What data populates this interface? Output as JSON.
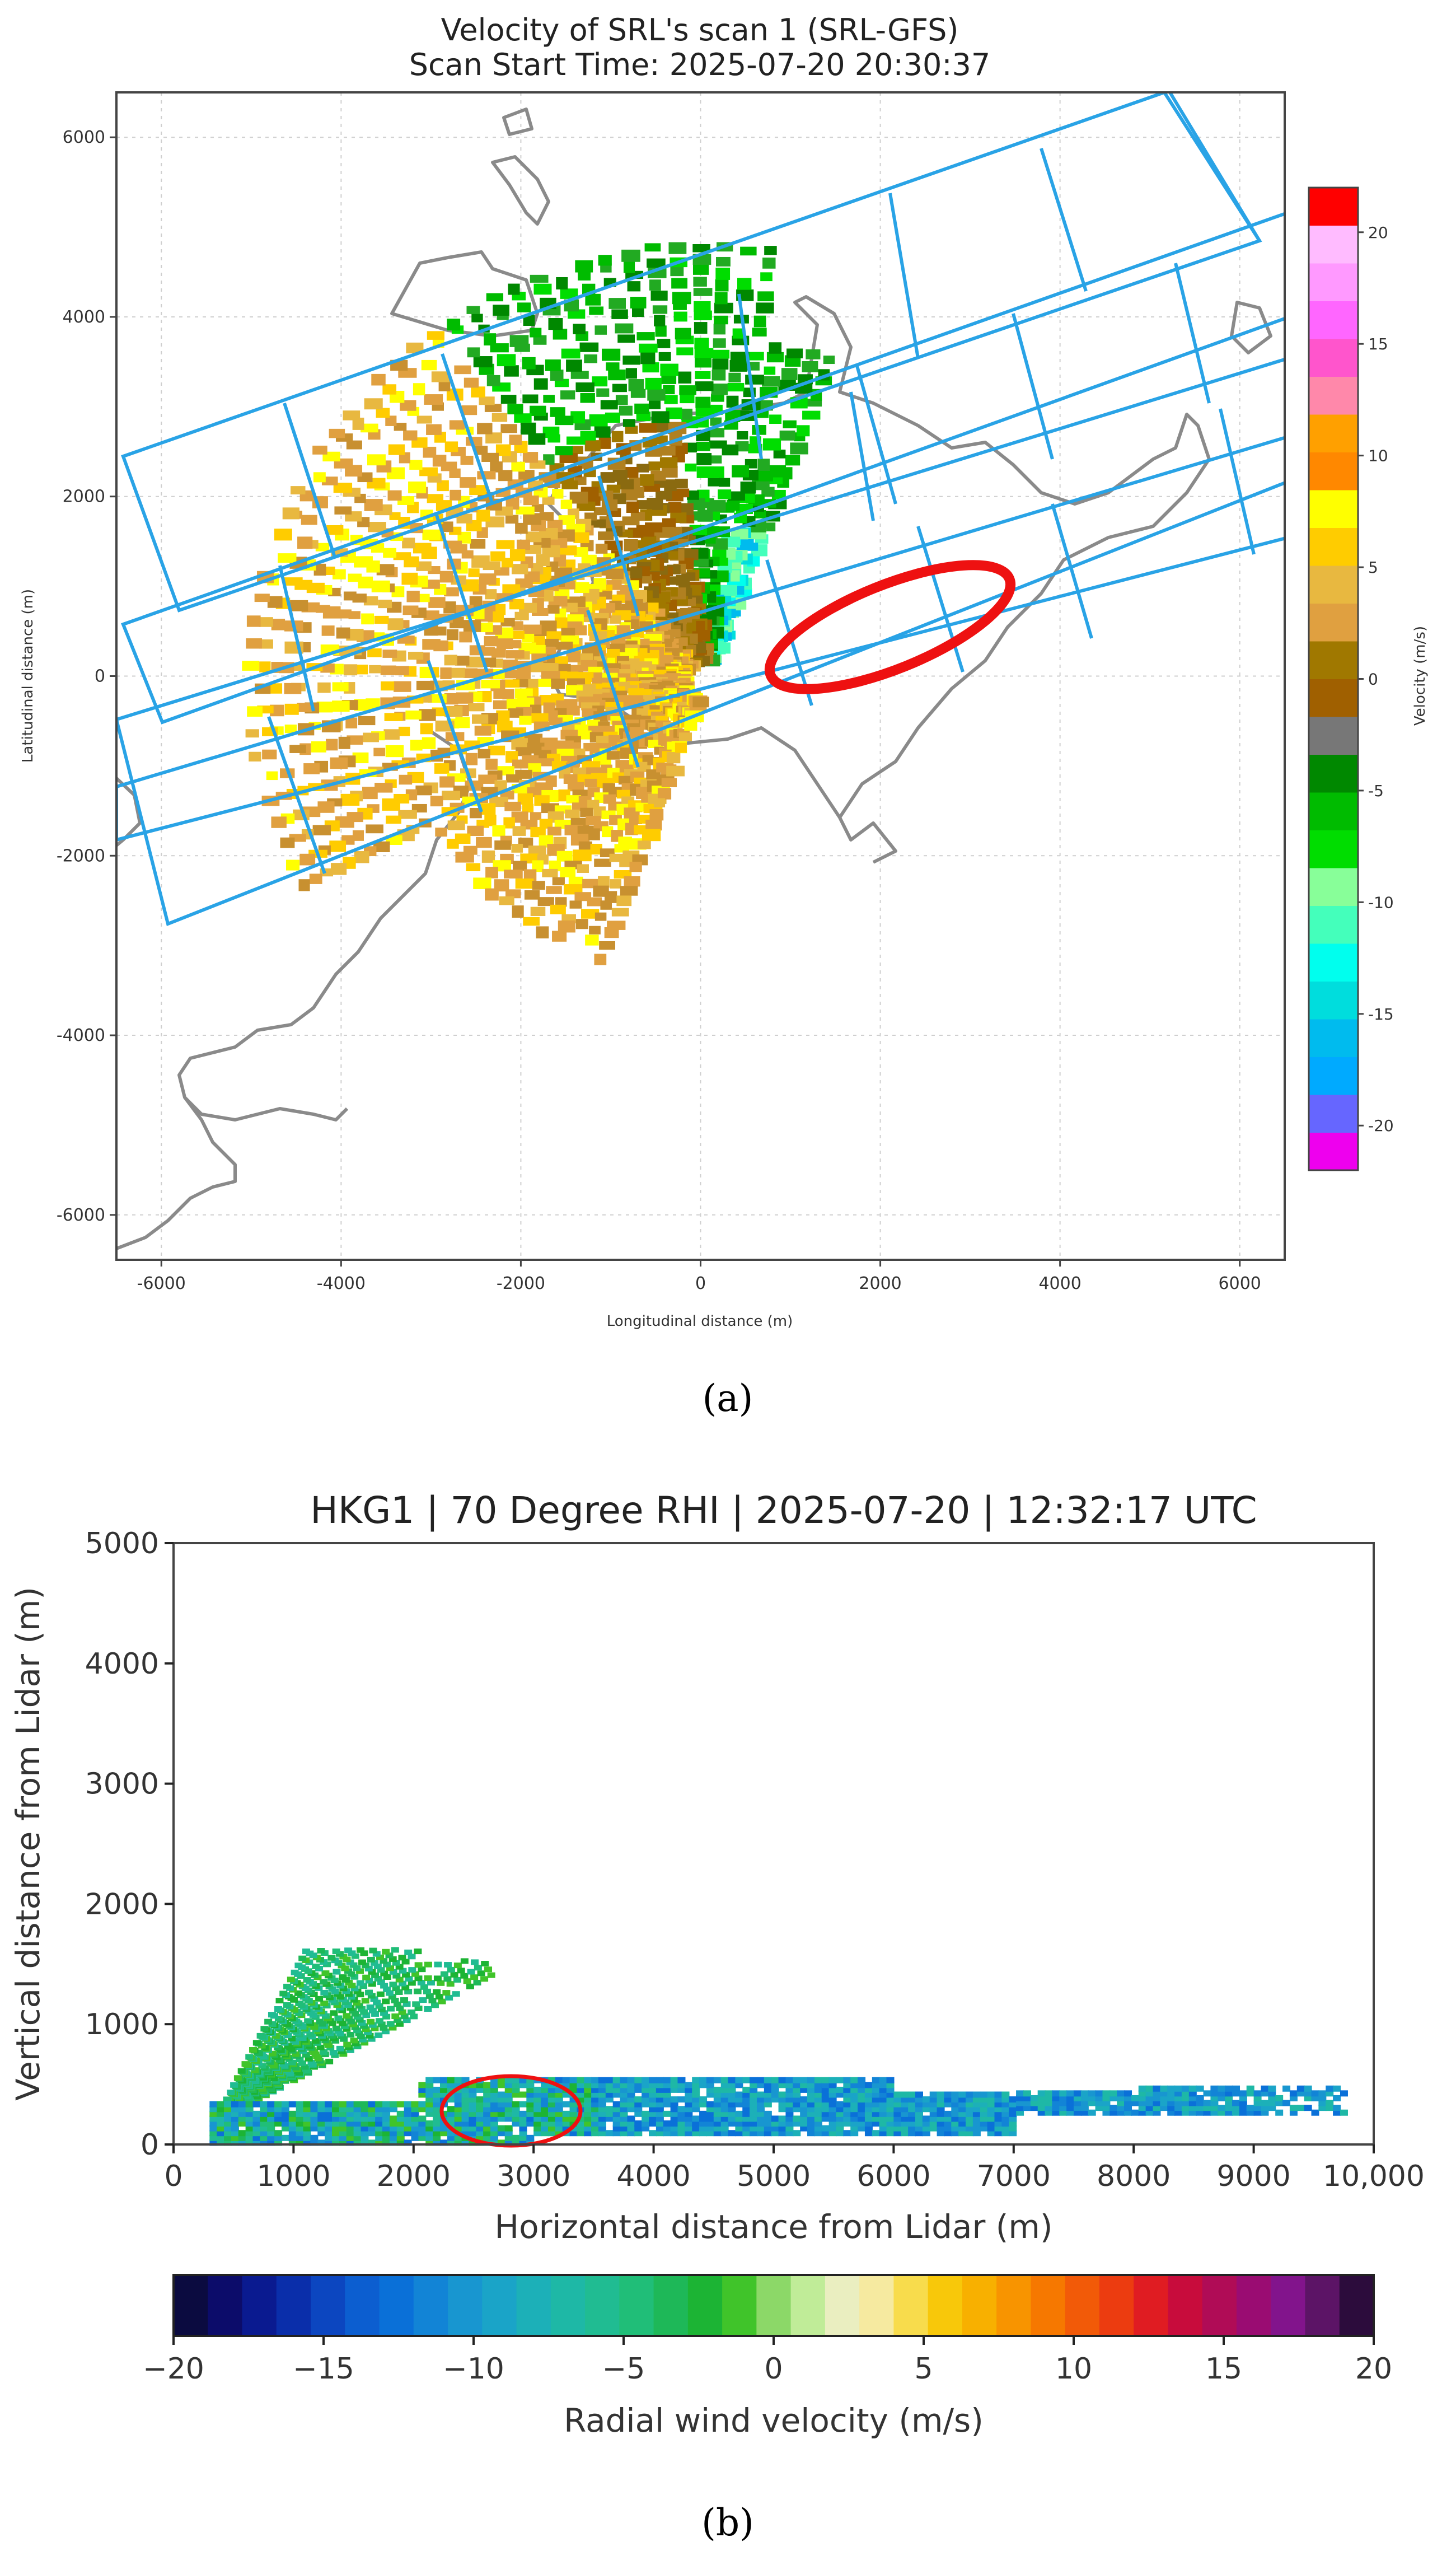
{
  "panel_a": {
    "title_line1": "Velocity of SRL's scan 1 (SRL-GFS)",
    "title_line2": "Scan Start Time: 2025-07-20 20:30:37",
    "caption": "(a)"
  },
  "panel_b": {
    "caption": "(b)"
  },
  "colors": {
    "boxes": "#29a3e6",
    "coast": "#8a8a8a",
    "highlight": "#ee1111"
  },
  "chart_data": [
    {
      "type": "heatmap",
      "title": "Velocity of SRL's scan 1 (SRL-GFS)\nScan Start Time: 2025-07-20 20:30:37",
      "xlabel": "Longitudinal distance (m)",
      "ylabel": "Latitudinal distance (m)",
      "xlim": [
        -6500,
        6500
      ],
      "ylim": [
        -6500,
        6500
      ],
      "xticks": [
        -6000,
        -4000,
        -2000,
        0,
        2000,
        4000,
        6000
      ],
      "yticks": [
        -6000,
        -4000,
        -2000,
        0,
        2000,
        4000,
        6000
      ],
      "grid": true,
      "colorbar": {
        "label": "Velocity (m/s)",
        "range": [
          -22,
          22
        ],
        "ticks": [
          -20,
          -15,
          -10,
          -5,
          0,
          5,
          10,
          15,
          20
        ],
        "colors": [
          "#ee00ee",
          "#6666ff",
          "#00aaff",
          "#00bbee",
          "#00dddd",
          "#00ffee",
          "#44ffbb",
          "#88ff99",
          "#00dd00",
          "#00bb00",
          "#008800",
          "#777777",
          "#a06000",
          "#a07800",
          "#e0a040",
          "#e8b840",
          "#ffcc00",
          "#ffff00",
          "#ff8800",
          "#ffa000",
          "#ff88aa",
          "#ff55cc",
          "#ff66ff",
          "#ff99ff",
          "#ffbbff",
          "#ff0000"
        ]
      },
      "highlight": {
        "shape": "ellipse",
        "center": [
          1000,
          500
        ],
        "color": "#ee1111"
      }
    },
    {
      "type": "heatmap",
      "title": "HKG1 | 70 Degree RHI | 2025-07-20 | 12:32:17 UTC",
      "xlabel": "Horizontal distance from Lidar (m)",
      "ylabel": "Vertical distance from Lidar (m)",
      "xlim": [
        0,
        10000
      ],
      "ylim": [
        0,
        5000
      ],
      "xticks": [
        "0",
        "1000",
        "2000",
        "3000",
        "4000",
        "5000",
        "6000",
        "7000",
        "8000",
        "9000",
        "10,000"
      ],
      "yticks": [
        "0",
        "1000",
        "2000",
        "3000",
        "4000",
        "5000"
      ],
      "colorbar": {
        "label": "Radial wind velocity (m/s)",
        "range": [
          -20,
          20
        ],
        "ticks": [
          "−20",
          "−15",
          "−10",
          "−5",
          "0",
          "5",
          "10",
          "15",
          "20"
        ],
        "colors": [
          "#0b0b40",
          "#0c0c6a",
          "#0a1a90",
          "#0a2eaa",
          "#0c46c0",
          "#0c5ed0",
          "#0a70d8",
          "#1284d6",
          "#1896d0",
          "#1aa4c8",
          "#1cb0b8",
          "#1eb8a6",
          "#20bc92",
          "#20be78",
          "#1eb858",
          "#1cb434",
          "#40c42a",
          "#8cd868",
          "#c0ec98",
          "#eaeec0",
          "#f6eaa0",
          "#f8dc4c",
          "#f8c80a",
          "#f8b000",
          "#f89400",
          "#f67800",
          "#f25a08",
          "#ec3c10",
          "#e01c22",
          "#c80c3c",
          "#b00c56",
          "#9a0c72",
          "#82148c",
          "#5c1466",
          "#2c0c3c"
        ]
      },
      "highlight": {
        "shape": "ellipse",
        "center": [
          2800,
          250
        ],
        "color": "#ee1111"
      }
    }
  ]
}
